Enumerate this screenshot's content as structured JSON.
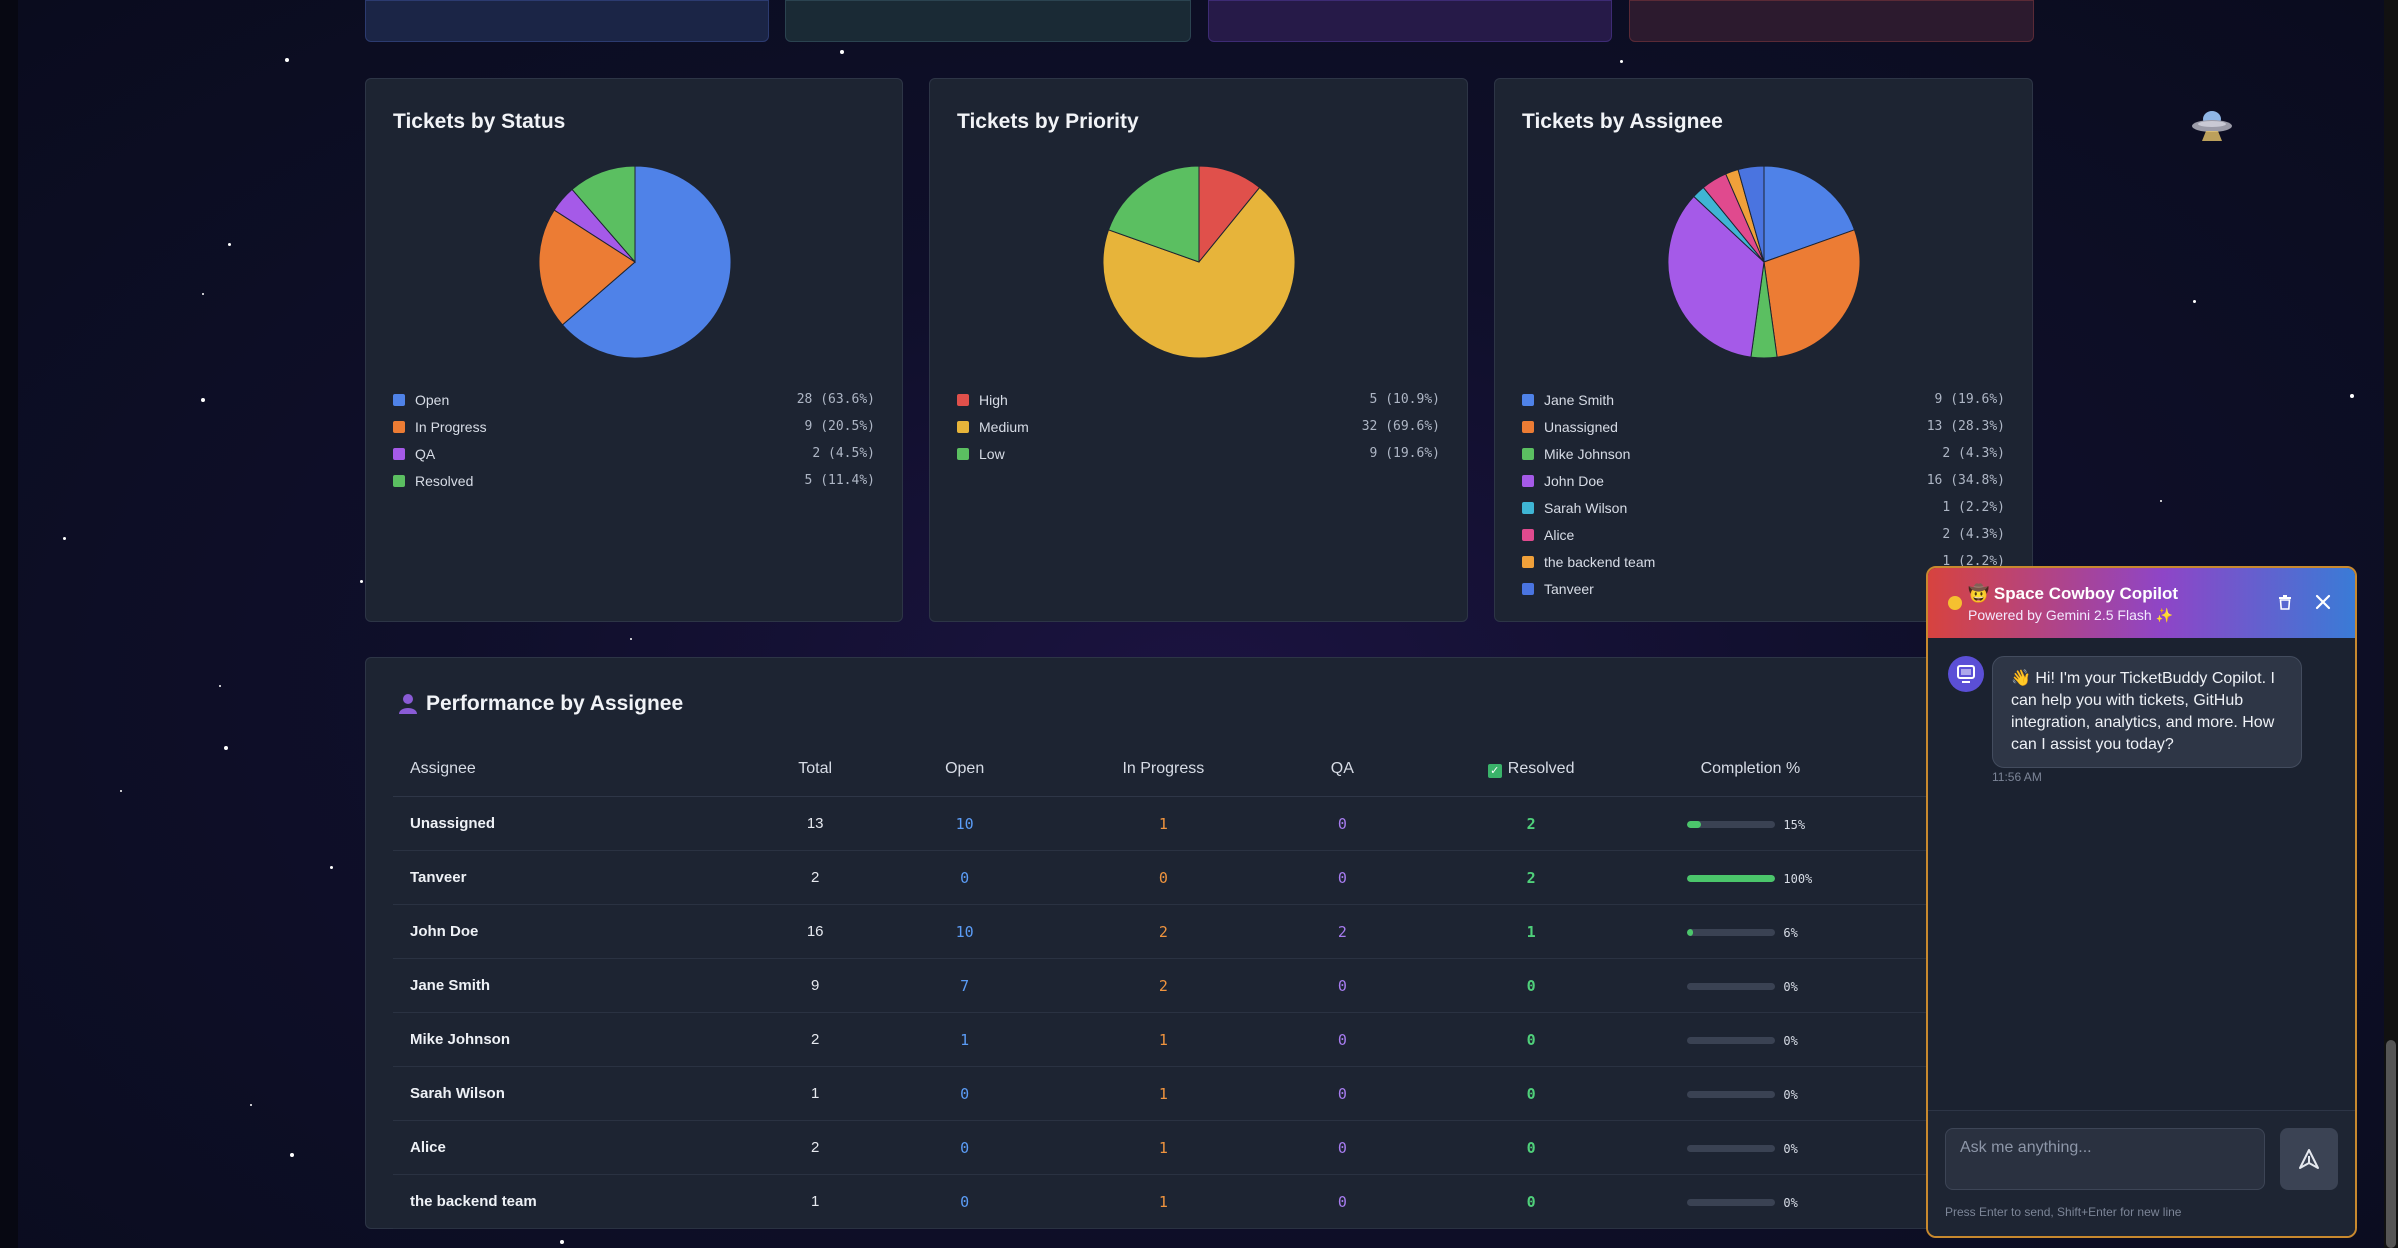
{
  "status_chart": {
    "title": "Tickets by Status",
    "items": [
      {
        "label": "Open",
        "value": "28 (63.6%)",
        "color": "#4f82e8",
        "count": 28
      },
      {
        "label": "In Progress",
        "value": "9 (20.5%)",
        "color": "#ec7c34",
        "count": 9
      },
      {
        "label": "QA",
        "value": "2 (4.5%)",
        "color": "#a55ae8",
        "count": 2
      },
      {
        "label": "Resolved",
        "value": "5 (11.4%)",
        "color": "#5bbf61",
        "count": 5
      }
    ]
  },
  "priority_chart": {
    "title": "Tickets by Priority",
    "items": [
      {
        "label": "High",
        "value": "5 (10.9%)",
        "color": "#e0504b",
        "count": 5
      },
      {
        "label": "Medium",
        "value": "32 (69.6%)",
        "color": "#e7b43a",
        "count": 32
      },
      {
        "label": "Low",
        "value": "9 (19.6%)",
        "color": "#5bbf61",
        "count": 9
      }
    ]
  },
  "assignee_chart": {
    "title": "Tickets by Assignee",
    "items": [
      {
        "label": "Jane Smith",
        "value": "9 (19.6%)",
        "color": "#4f82e8",
        "count": 9
      },
      {
        "label": "Unassigned",
        "value": "13 (28.3%)",
        "color": "#ec7c34",
        "count": 13
      },
      {
        "label": "Mike Johnson",
        "value": "2 (4.3%)",
        "color": "#5bbf61",
        "count": 2
      },
      {
        "label": "John Doe",
        "value": "16 (34.8%)",
        "color": "#a55ae8",
        "count": 16
      },
      {
        "label": "Sarah Wilson",
        "value": "1 (2.2%)",
        "color": "#3fb5d4",
        "count": 1
      },
      {
        "label": "Alice",
        "value": "2 (4.3%)",
        "color": "#e04a8e",
        "count": 2
      },
      {
        "label": "the backend team",
        "value": "1 (2.2%)",
        "color": "#f0a03a",
        "count": 1
      },
      {
        "label": "Tanveer",
        "value": "",
        "color": "#4a74e0",
        "count": 2
      }
    ]
  },
  "performance": {
    "title": "Performance by Assignee",
    "headers": {
      "assignee": "Assignee",
      "total": "Total",
      "open": "Open",
      "in_progress": "In Progress",
      "qa": "QA",
      "resolved": "Resolved",
      "completion": "Completion %"
    },
    "rows": [
      {
        "name": "Unassigned",
        "total": "13",
        "open": "10",
        "in_progress": "1",
        "qa": "0",
        "resolved": "2",
        "completion": 15,
        "completion_label": "15%"
      },
      {
        "name": "Tanveer",
        "total": "2",
        "open": "0",
        "in_progress": "0",
        "qa": "0",
        "resolved": "2",
        "completion": 100,
        "completion_label": "100%"
      },
      {
        "name": "John Doe",
        "total": "16",
        "open": "10",
        "in_progress": "2",
        "qa": "2",
        "resolved": "1",
        "completion": 6,
        "completion_label": "6%"
      },
      {
        "name": "Jane Smith",
        "total": "9",
        "open": "7",
        "in_progress": "2",
        "qa": "0",
        "resolved": "0",
        "completion": 0,
        "completion_label": "0%"
      },
      {
        "name": "Mike Johnson",
        "total": "2",
        "open": "1",
        "in_progress": "1",
        "qa": "0",
        "resolved": "0",
        "completion": 0,
        "completion_label": "0%"
      },
      {
        "name": "Sarah Wilson",
        "total": "1",
        "open": "0",
        "in_progress": "1",
        "qa": "0",
        "resolved": "0",
        "completion": 0,
        "completion_label": "0%"
      },
      {
        "name": "Alice",
        "total": "2",
        "open": "0",
        "in_progress": "1",
        "qa": "0",
        "resolved": "0",
        "completion": 0,
        "completion_label": "0%"
      },
      {
        "name": "the backend team",
        "total": "1",
        "open": "0",
        "in_progress": "1",
        "qa": "0",
        "resolved": "0",
        "completion": 0,
        "completion_label": "0%"
      }
    ]
  },
  "chat": {
    "title": "🤠 Space Cowboy Copilot",
    "subtitle": "Powered by Gemini 2.5 Flash ✨",
    "message": "👋 Hi! I'm your TicketBuddy Copilot. I can help you with tickets, GitHub integration, analytics, and more. How can I assist you today?",
    "time": "11:56 AM",
    "placeholder": "Ask me anything...",
    "hint": "Press Enter to send, Shift+Enter for new line"
  },
  "icons": {
    "trash": "trash-icon",
    "close": "close-icon",
    "send": "send-icon",
    "bot": "bot-avatar-icon",
    "ufo": "ufo-icon",
    "user": "user-icon"
  }
}
